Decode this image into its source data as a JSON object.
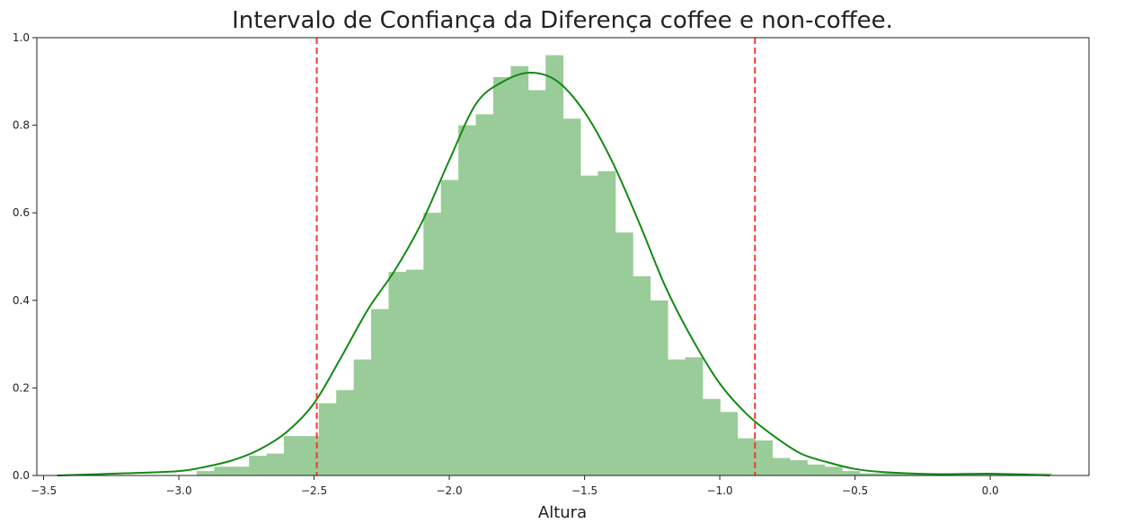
{
  "chart_data": {
    "type": "bar",
    "title": "Intervalo de Confiança da Diferença coffee e non-coffee.",
    "xlabel": "Altura",
    "ylabel": "",
    "xlim": [
      -3.525,
      0.365
    ],
    "ylim": [
      0.0,
      1.0
    ],
    "grid": false,
    "legend": "none",
    "x_ticks": [
      -3.5,
      -3.0,
      -2.5,
      -2.0,
      -1.5,
      -1.0,
      -0.5,
      0.0
    ],
    "x_tick_labels": [
      "−3.5",
      "−3.0",
      "−2.5",
      "−2.0",
      "−1.5",
      "−1.0",
      "−0.5",
      "0.0"
    ],
    "y_ticks": [
      0.0,
      0.2,
      0.4,
      0.6,
      0.8,
      1.0
    ],
    "y_tick_labels": [
      "0.0",
      "0.2",
      "0.4",
      "0.6",
      "0.8",
      "1.0"
    ],
    "histogram": {
      "bin_start": -3.45,
      "bin_width": 0.0645,
      "values": [
        0.0,
        0.0,
        0.0,
        0.0,
        0.0,
        0.0,
        0.0,
        0.0,
        0.01,
        0.02,
        0.02,
        0.045,
        0.05,
        0.09,
        0.09,
        0.165,
        0.195,
        0.265,
        0.38,
        0.465,
        0.47,
        0.6,
        0.675,
        0.8,
        0.825,
        0.91,
        0.935,
        0.88,
        0.96,
        0.815,
        0.685,
        0.695,
        0.555,
        0.455,
        0.4,
        0.265,
        0.27,
        0.175,
        0.145,
        0.085,
        0.08,
        0.04,
        0.035,
        0.025,
        0.02,
        0.01,
        0.005,
        0.005,
        0.005,
        0.005,
        0.005,
        0.005,
        0.005,
        0.005,
        0.005,
        0.005,
        0.005,
        0.0
      ],
      "color": "#99cc99"
    },
    "kde": {
      "x": [
        -3.45,
        -3.2,
        -3.0,
        -2.9,
        -2.8,
        -2.7,
        -2.6,
        -2.5,
        -2.4,
        -2.3,
        -2.2,
        -2.1,
        -2.0,
        -1.9,
        -1.8,
        -1.7,
        -1.6,
        -1.5,
        -1.4,
        -1.3,
        -1.2,
        -1.1,
        -1.0,
        -0.9,
        -0.8,
        -0.7,
        -0.6,
        -0.5,
        -0.4,
        -0.2,
        0.0,
        0.22
      ],
      "y": [
        0.0,
        0.005,
        0.01,
        0.02,
        0.035,
        0.06,
        0.1,
        0.165,
        0.27,
        0.38,
        0.47,
        0.58,
        0.72,
        0.85,
        0.9,
        0.92,
        0.9,
        0.83,
        0.72,
        0.58,
        0.43,
        0.31,
        0.21,
        0.14,
        0.09,
        0.05,
        0.03,
        0.015,
        0.008,
        0.003,
        0.004,
        0.0
      ],
      "color": "#138a13"
    },
    "reference_lines": [
      {
        "x": -2.49,
        "color": "#f03c32",
        "style": "dashed"
      },
      {
        "x": -0.87,
        "color": "#f03c32",
        "style": "dashed"
      }
    ]
  }
}
